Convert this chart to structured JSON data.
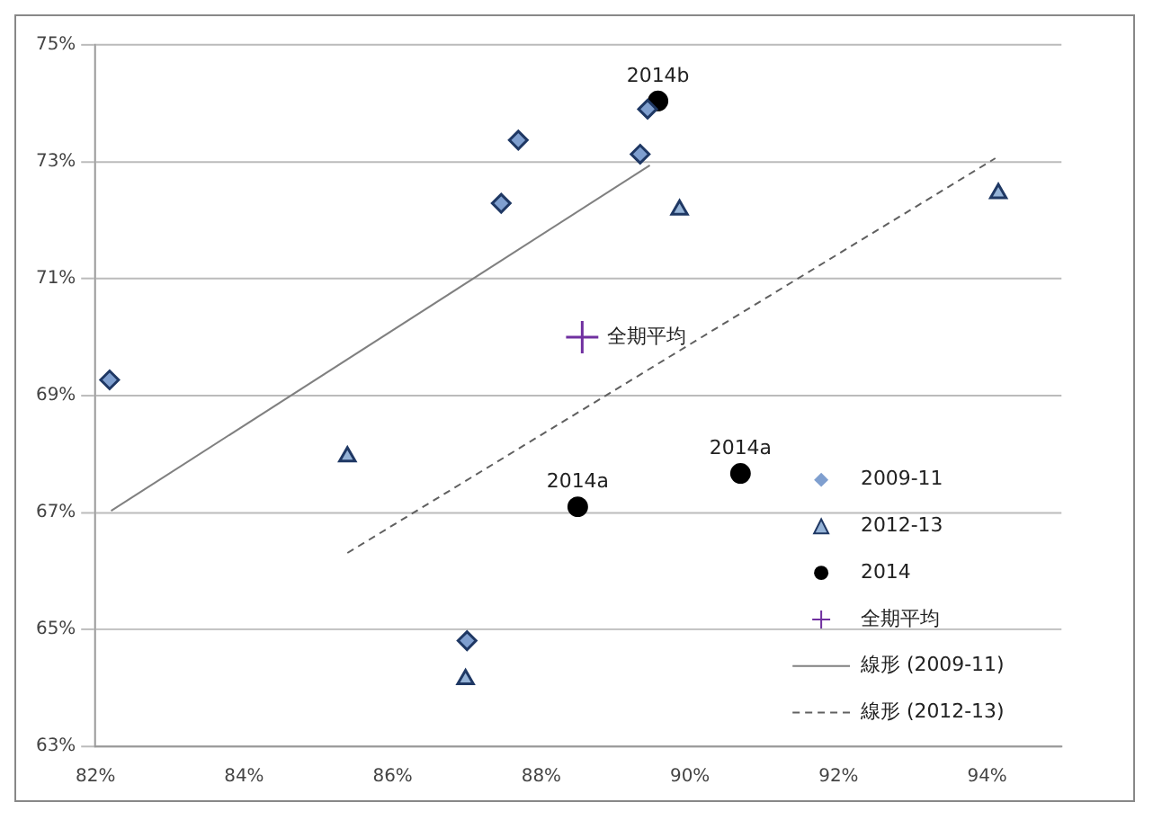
{
  "chart_data": {
    "type": "scatter",
    "xlim": [
      82,
      95
    ],
    "ylim": [
      63,
      75
    ],
    "xticks": [
      {
        "value": 82,
        "label": "82%"
      },
      {
        "value": 84,
        "label": "84%"
      },
      {
        "value": 86,
        "label": "86%"
      },
      {
        "value": 88,
        "label": "88%"
      },
      {
        "value": 90,
        "label": "90%"
      },
      {
        "value": 92,
        "label": "92%"
      },
      {
        "value": 94,
        "label": "94%"
      }
    ],
    "yticks": [
      {
        "value": 63,
        "label": "63%"
      },
      {
        "value": 65,
        "label": "65%"
      },
      {
        "value": 67,
        "label": "67%"
      },
      {
        "value": 69,
        "label": "69%"
      },
      {
        "value": 71,
        "label": "71%"
      },
      {
        "value": 73,
        "label": "73%"
      },
      {
        "value": 75,
        "label": "75%"
      }
    ],
    "grid": "y",
    "legend": "bottom right",
    "series": [
      {
        "name": "2009-11",
        "color": "#7f9fcf",
        "marker": "diamond",
        "x": [
          82.19,
          87.69,
          87.46,
          87.0,
          89.33,
          89.43
        ],
        "values": [
          69.27,
          73.37,
          72.29,
          64.81,
          73.13,
          73.9
        ]
      },
      {
        "name": "2012-13",
        "color": "#95b3d7",
        "marker": "triangle",
        "x": [
          85.39,
          86.98,
          89.86,
          94.15
        ],
        "values": [
          67.96,
          64.15,
          72.18,
          72.46
        ]
      },
      {
        "name": "2014",
        "color": "#000000",
        "marker": "circle",
        "x": [
          89.57,
          88.49,
          90.68
        ],
        "values": [
          74.04,
          67.1,
          67.67
        ]
      },
      {
        "name": "全期平均",
        "color": "#7030a0",
        "marker": "cross",
        "x": [
          88.55
        ],
        "values": [
          70.0
        ]
      },
      {
        "name": "線形 (2009-11)",
        "type": "line",
        "color": "#808080",
        "marker": "none",
        "line_style": "solid",
        "x": [
          82.21,
          89.46
        ],
        "values": [
          67.03,
          72.94
        ]
      },
      {
        "name": "線形 (2012-13)",
        "type": "line",
        "color": "#606060",
        "marker": "none",
        "line_style": "dashed",
        "x": [
          85.39,
          94.11
        ],
        "values": [
          66.31,
          73.06
        ]
      }
    ],
    "annotations": [
      {
        "text": "2014b",
        "x": 89.57,
        "y": 74.04
      },
      {
        "text": "2014a",
        "x": 88.49,
        "y": 67.1
      },
      {
        "text": "2014a",
        "x": 90.68,
        "y": 67.67
      },
      {
        "text": "全期平均",
        "x": 88.55,
        "y": 70.0
      }
    ]
  }
}
